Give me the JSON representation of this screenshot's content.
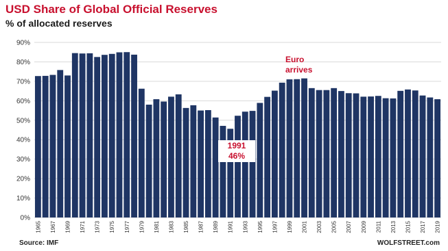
{
  "chart_data": {
    "type": "bar",
    "title": "USD Share of Global Official Reserves",
    "subtitle": "% of allocated reserves",
    "categories": [
      "1965",
      "1966",
      "1967",
      "1968",
      "1969",
      "1970",
      "1971",
      "1972",
      "1973",
      "1974",
      "1975",
      "1976",
      "1977",
      "1978",
      "1979",
      "1980",
      "1981",
      "1982",
      "1983",
      "1984",
      "1985",
      "1986",
      "1987",
      "1988",
      "1989",
      "1990",
      "1991",
      "1992",
      "1993",
      "1994",
      "1995",
      "1996",
      "1997",
      "1998",
      "1999",
      "2000",
      "2001",
      "2002",
      "2003",
      "2004",
      "2005",
      "2006",
      "2007",
      "2008",
      "2009",
      "2010",
      "2011",
      "2012",
      "2013",
      "2014",
      "2015",
      "2016",
      "2017",
      "2018",
      "2019"
    ],
    "tick_labels": [
      "1965",
      "1967",
      "1969",
      "1971",
      "1973",
      "1975",
      "1977",
      "1979",
      "1981",
      "1983",
      "1985",
      "1987",
      "1989",
      "1991",
      "1993",
      "1995",
      "1997",
      "1999",
      "2001",
      "2003",
      "2005",
      "2007",
      "2009",
      "2011",
      "2013",
      "2015",
      "2017",
      "2019"
    ],
    "values": [
      72.7,
      72.8,
      73.3,
      75.8,
      73.0,
      84.5,
      84.3,
      84.4,
      82.5,
      83.6,
      84.1,
      84.9,
      85.0,
      83.7,
      66.2,
      58.0,
      60.8,
      59.6,
      62.1,
      63.3,
      56.3,
      57.7,
      55.0,
      55.2,
      51.4,
      47.1,
      45.6,
      52.3,
      54.4,
      54.8,
      58.9,
      62.0,
      65.2,
      69.3,
      71.0,
      71.1,
      71.5,
      66.5,
      65.5,
      65.5,
      66.5,
      65.0,
      63.9,
      63.8,
      62.1,
      62.2,
      62.5,
      61.3,
      61.2,
      65.1,
      65.8,
      65.3,
      62.7,
      61.7,
      60.8
    ],
    "ylim": [
      0,
      90
    ],
    "yticks": [
      "0%",
      "10%",
      "20%",
      "30%",
      "40%",
      "50%",
      "60%",
      "70%",
      "80%",
      "90%"
    ],
    "grid": true,
    "bar_color": "#1f3564",
    "annotations": [
      {
        "text_line1": "Euro",
        "text_line2": "arrives",
        "category": "1999"
      },
      {
        "text_line1": "1991",
        "text_line2": "46%",
        "category": "1991"
      }
    ]
  },
  "footer": {
    "source": "Source: IMF",
    "credit": "WOLFSTREET.com"
  },
  "colors": {
    "title": "#c8102e",
    "annotation": "#c8102e",
    "grid": "#d9d9d9"
  }
}
